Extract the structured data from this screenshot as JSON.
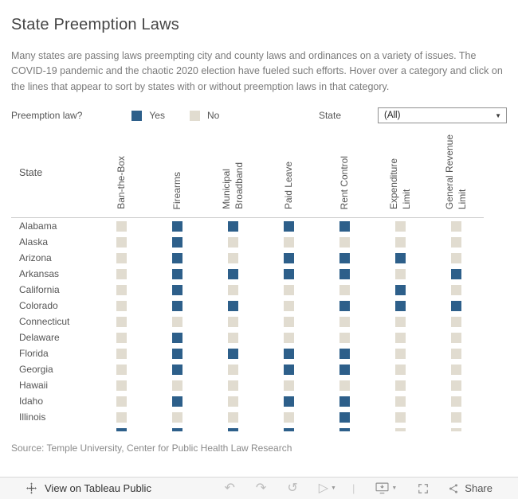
{
  "title": "State Preemption Laws",
  "description": "Many states are passing laws preempting city and county laws and ordinances on a variety of issues. The COVID-19 pandemic and the chaotic 2020 election have fueled such efforts. Hover over a category and click on the lines that appear to sort by states with or without preemption laws in that category.",
  "legend": {
    "question": "Preemption law?",
    "yes": "Yes",
    "no": "No",
    "yes_color": "#2d5f8a",
    "no_color": "#e1dcd0"
  },
  "filter": {
    "label": "State",
    "value": "(All)"
  },
  "chart_data": {
    "type": "heatmap",
    "row_header": "State",
    "columns": [
      "Ban-the-Box",
      "Firearms",
      "Municipal\nBroadband",
      "Paid Leave",
      "Rent Control",
      "Expenditure\nLimit",
      "General Revenue\nLimit"
    ],
    "value_legend": {
      "1": "Yes",
      "0": "No"
    },
    "rows": [
      {
        "state": "Alabama",
        "values": [
          0,
          1,
          1,
          1,
          1,
          0,
          0
        ]
      },
      {
        "state": "Alaska",
        "values": [
          0,
          1,
          0,
          0,
          0,
          0,
          0
        ]
      },
      {
        "state": "Arizona",
        "values": [
          0,
          1,
          0,
          1,
          1,
          1,
          0
        ]
      },
      {
        "state": "Arkansas",
        "values": [
          0,
          1,
          1,
          1,
          1,
          0,
          1
        ]
      },
      {
        "state": "California",
        "values": [
          0,
          1,
          0,
          0,
          0,
          1,
          0
        ]
      },
      {
        "state": "Colorado",
        "values": [
          0,
          1,
          1,
          0,
          1,
          1,
          1
        ]
      },
      {
        "state": "Connecticut",
        "values": [
          0,
          0,
          0,
          0,
          0,
          0,
          0
        ]
      },
      {
        "state": "Delaware",
        "values": [
          0,
          1,
          0,
          0,
          0,
          0,
          0
        ]
      },
      {
        "state": "Florida",
        "values": [
          0,
          1,
          1,
          1,
          1,
          0,
          0
        ]
      },
      {
        "state": "Georgia",
        "values": [
          0,
          1,
          0,
          1,
          1,
          0,
          0
        ]
      },
      {
        "state": "Hawaii",
        "values": [
          0,
          0,
          0,
          0,
          0,
          0,
          0
        ]
      },
      {
        "state": "Idaho",
        "values": [
          0,
          1,
          0,
          1,
          1,
          0,
          0
        ]
      },
      {
        "state": "Illinois",
        "values": [
          0,
          0,
          0,
          0,
          1,
          0,
          0
        ]
      }
    ],
    "partial_row": {
      "state": "",
      "values": [
        1,
        1,
        1,
        1,
        1,
        0,
        0
      ]
    }
  },
  "source": "Source: Temple University, Center for Public Health Law Research",
  "toolbar": {
    "view_label": "View on Tableau Public",
    "share_label": "Share",
    "icons": {
      "undo": "↶",
      "redo": "↷",
      "reset": "↺",
      "replay": "▷",
      "caret": "▼",
      "separator": "|"
    }
  }
}
